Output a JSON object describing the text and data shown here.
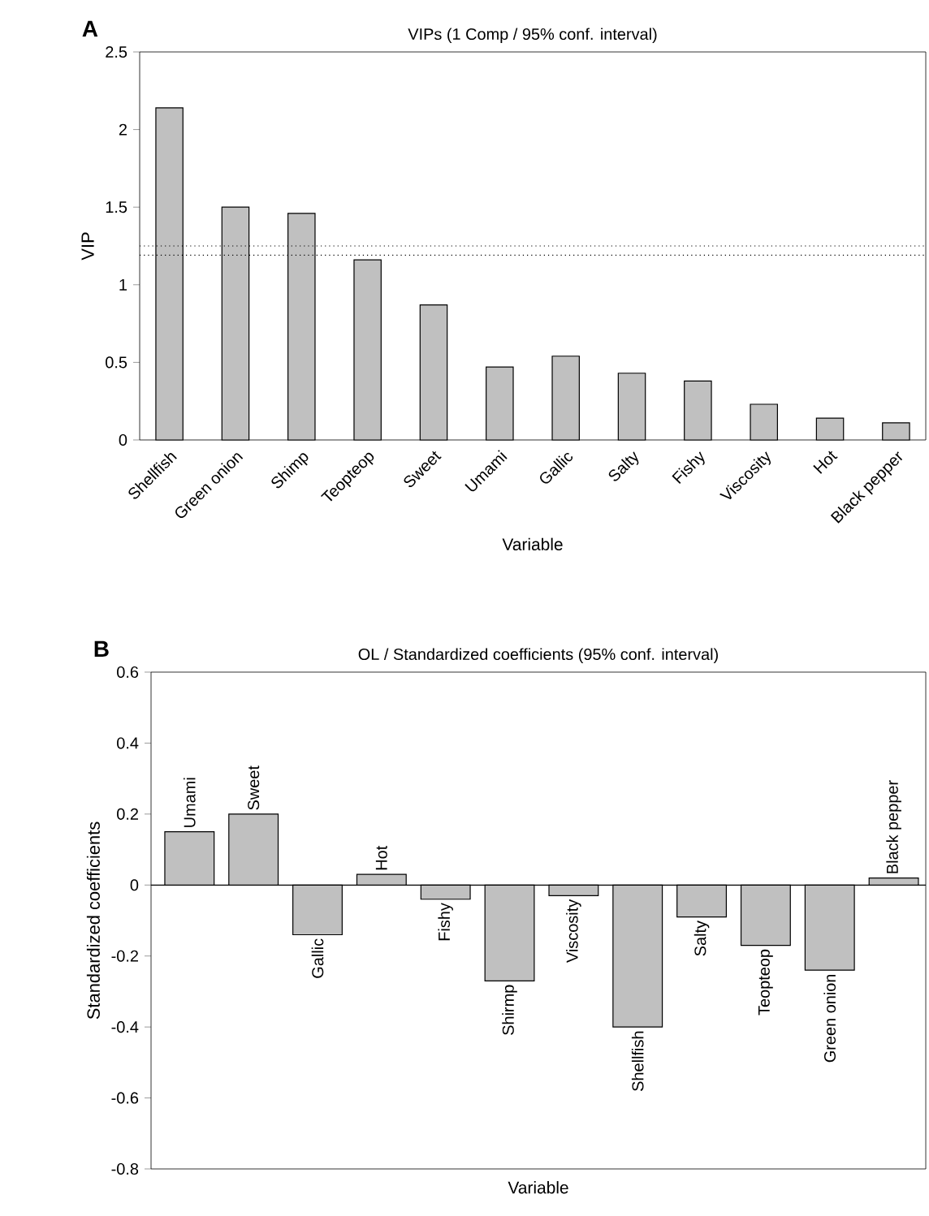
{
  "chart_data": [
    {
      "type": "bar",
      "title": "VIPs (1 Comp / 95% conf. interval)",
      "xlabel": "Variable",
      "ylabel": "VIP",
      "annotations": [
        "A"
      ],
      "categories": [
        "Shellfish",
        "Green onion",
        "Shimp",
        "Teopteop",
        "Sweet",
        "Umami",
        "Gallic",
        "Salty",
        "Fishy",
        "Viscosity",
        "Hot",
        "Black pepper"
      ],
      "values": [
        2.14,
        1.5,
        1.46,
        1.16,
        0.87,
        0.47,
        0.54,
        0.43,
        0.38,
        0.23,
        0.14,
        0.11
      ],
      "color": "#c0c0c0",
      "ylim": [
        0,
        2.5
      ],
      "yticks": [
        0,
        0.5,
        1,
        1.5,
        2,
        2.5
      ],
      "ref_lines": [
        {
          "axis": "y",
          "value": 1.25,
          "color": "#000000",
          "line_style": "dotted"
        },
        {
          "axis": "y",
          "value": 1.19,
          "color": "#000000",
          "line_style": "dotted"
        }
      ]
    },
    {
      "type": "bar",
      "title": "OL / Standardized coefficients (95% conf. interval)",
      "xlabel": "Variable",
      "ylabel": "Standardized coefficients",
      "annotations": [
        "B"
      ],
      "categories": [
        "Umami",
        "Sweet",
        "Gallic",
        "Hot",
        "Fishy",
        "Shirmp",
        "Viscosity",
        "Shellfish",
        "Salty",
        "Teopteop",
        "Green onion",
        "Black pepper"
      ],
      "values": [
        0.15,
        0.2,
        -0.14,
        0.03,
        -0.04,
        -0.27,
        -0.03,
        -0.4,
        -0.09,
        -0.17,
        -0.24,
        0.02
      ],
      "color": "#c0c0c0",
      "ylim": [
        -0.8,
        0.6
      ],
      "yticks": [
        -0.8,
        -0.6,
        -0.4,
        -0.2,
        0,
        0.2,
        0.4,
        0.6
      ]
    }
  ]
}
